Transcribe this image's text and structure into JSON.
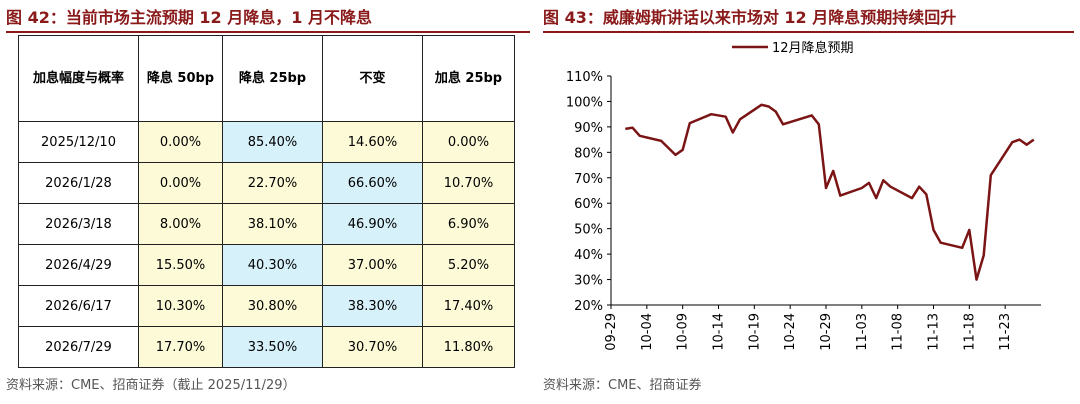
{
  "left_figure": {
    "title": "图 42：当前市场主流预期 12 月降息，1 月不降息",
    "source": "资料来源：CME、招商证券（截止 2025/11/29）",
    "headers": [
      "加息幅度与概率",
      "降息 50bp",
      "降息 25bp",
      "不变",
      "加息 25bp"
    ],
    "rows": [
      {
        "date": "2025/12/10",
        "cells": [
          "0.00%",
          "85.40%",
          "14.60%",
          "0.00%"
        ],
        "hl": [
          0,
          1,
          0,
          0
        ]
      },
      {
        "date": "2026/1/28",
        "cells": [
          "0.00%",
          "22.70%",
          "66.60%",
          "10.70%"
        ],
        "hl": [
          0,
          0,
          1,
          0
        ]
      },
      {
        "date": "2026/3/18",
        "cells": [
          "8.00%",
          "38.10%",
          "46.90%",
          "6.90%"
        ],
        "hl": [
          0,
          0,
          1,
          0
        ]
      },
      {
        "date": "2026/4/29",
        "cells": [
          "15.50%",
          "40.30%",
          "37.00%",
          "5.20%"
        ],
        "hl": [
          0,
          1,
          0,
          0
        ]
      },
      {
        "date": "2026/6/17",
        "cells": [
          "10.30%",
          "30.80%",
          "38.30%",
          "17.40%"
        ],
        "hl": [
          0,
          0,
          1,
          0
        ]
      },
      {
        "date": "2026/7/29",
        "cells": [
          "17.70%",
          "33.50%",
          "30.70%",
          "11.80%"
        ],
        "hl": [
          0,
          1,
          0,
          0
        ]
      }
    ],
    "colors": {
      "yellow_cell": "#fdfbd7",
      "blue_cell": "#d7f1fb"
    }
  },
  "right_figure": {
    "title": "图 43：威廉姆斯讲话以来市场对 12 月降息预期持续回升",
    "source": "资料来源：CME、招商证券"
  },
  "chart_data": [
    {
      "type": "table",
      "columns": [
        "加息幅度与概率",
        "降息 50bp",
        "降息 25bp",
        "不变",
        "加息 25bp"
      ],
      "rows": [
        [
          "2025/12/10",
          "0.00%",
          "85.40%",
          "14.60%",
          "0.00%"
        ],
        [
          "2026/1/28",
          "0.00%",
          "22.70%",
          "66.60%",
          "10.70%"
        ],
        [
          "2026/3/18",
          "8.00%",
          "38.10%",
          "46.90%",
          "6.90%"
        ],
        [
          "2026/4/29",
          "15.50%",
          "40.30%",
          "37.00%",
          "5.20%"
        ],
        [
          "2026/6/17",
          "10.30%",
          "30.80%",
          "38.30%",
          "17.40%"
        ],
        [
          "2026/7/29",
          "17.70%",
          "33.50%",
          "30.70%",
          "11.80%"
        ]
      ]
    },
    {
      "type": "line",
      "title": "图 43：威廉姆斯讲话以来市场对 12 月降息预期持续回升",
      "xlabel": "",
      "ylabel": "",
      "ylim": [
        20,
        110
      ],
      "yticks": [
        "20%",
        "30%",
        "40%",
        "50%",
        "60%",
        "70%",
        "80%",
        "90%",
        "100%",
        "110%"
      ],
      "xtick_labels": [
        "09-29",
        "10-04",
        "10-09",
        "10-14",
        "10-19",
        "10-24",
        "10-29",
        "11-03",
        "11-08",
        "11-13",
        "11-18",
        "11-23"
      ],
      "legend": "top-left",
      "grid": false,
      "series_color": "#7b1515",
      "series": [
        {
          "name": "12月降息预期",
          "points": [
            [
              "2025-10-01",
              89.2
            ],
            [
              "2025-10-02",
              89.7
            ],
            [
              "2025-10-03",
              86.5
            ],
            [
              "2025-10-06",
              84.5
            ],
            [
              "2025-10-08",
              79.0
            ],
            [
              "2025-10-09",
              81.0
            ],
            [
              "2025-10-10",
              91.5
            ],
            [
              "2025-10-13",
              95.0
            ],
            [
              "2025-10-15",
              94.0
            ],
            [
              "2025-10-16",
              87.8
            ],
            [
              "2025-10-17",
              93.0
            ],
            [
              "2025-10-20",
              98.7
            ],
            [
              "2025-10-21",
              98.0
            ],
            [
              "2025-10-22",
              96.0
            ],
            [
              "2025-10-23",
              91.0
            ],
            [
              "2025-10-27",
              94.5
            ],
            [
              "2025-10-28",
              91.0
            ],
            [
              "2025-10-29",
              66.0
            ],
            [
              "2025-10-30",
              72.7
            ],
            [
              "2025-10-31",
              63.0
            ],
            [
              "2025-11-03",
              66.0
            ],
            [
              "2025-11-04",
              68.0
            ],
            [
              "2025-11-05",
              62.0
            ],
            [
              "2025-11-06",
              69.0
            ],
            [
              "2025-11-07",
              66.5
            ],
            [
              "2025-11-10",
              62.0
            ],
            [
              "2025-11-11",
              66.5
            ],
            [
              "2025-11-12",
              63.5
            ],
            [
              "2025-11-13",
              49.5
            ],
            [
              "2025-11-14",
              44.5
            ],
            [
              "2025-11-17",
              42.5
            ],
            [
              "2025-11-18",
              49.5
            ],
            [
              "2025-11-19",
              30.0
            ],
            [
              "2025-11-20",
              39.5
            ],
            [
              "2025-11-21",
              71.0
            ],
            [
              "2025-11-24",
              84.0
            ],
            [
              "2025-11-25",
              85.0
            ],
            [
              "2025-11-26",
              83.0
            ],
            [
              "2025-11-27",
              85.0
            ]
          ]
        }
      ]
    }
  ]
}
